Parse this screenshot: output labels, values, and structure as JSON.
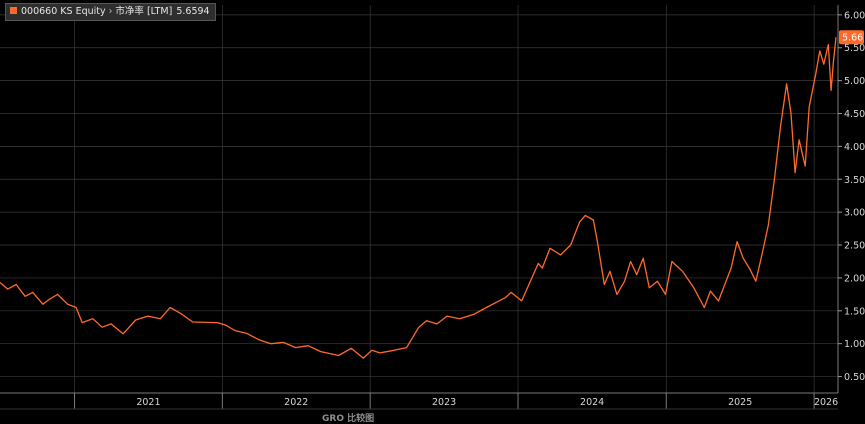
{
  "legend": {
    "ticker": "000660 KS Equity",
    "metric": "市净率 [LTM]",
    "value": "5.6594",
    "series_color": "#ff6a2a"
  },
  "last_price_badge": "5.66",
  "footer_label": "GRO 比较图",
  "colors": {
    "background": "#000000",
    "grid": "#3a3a3a",
    "axis_text": "#d8d8d8",
    "series": "#ff6a2a"
  },
  "chart_data": {
    "type": "line",
    "title": "",
    "xlabel": "",
    "ylabel": "",
    "x_tick_labels": [
      "2021",
      "2022",
      "2023",
      "2024",
      "2025",
      "2026"
    ],
    "x_range": [
      "2020-07-01",
      "2026-03-01"
    ],
    "y_tick_labels": [
      "0.50",
      "1.00",
      "1.50",
      "2.00",
      "2.50",
      "3.00",
      "3.50",
      "4.00",
      "4.50",
      "5.00",
      "5.50",
      "6.00"
    ],
    "ylim": [
      0.25,
      6.15
    ],
    "grid": true,
    "y_axis_side": "right",
    "series": [
      {
        "name": "000660 KS Equity",
        "color": "#ff6a2a",
        "points": [
          [
            "2020-07-01",
            1.93
          ],
          [
            "2020-07-20",
            1.83
          ],
          [
            "2020-08-10",
            1.9
          ],
          [
            "2020-09-01",
            1.72
          ],
          [
            "2020-09-20",
            1.78
          ],
          [
            "2020-10-15",
            1.6
          ],
          [
            "2020-11-01",
            1.68
          ],
          [
            "2020-11-20",
            1.75
          ],
          [
            "2020-12-15",
            1.6
          ],
          [
            "2021-01-05",
            1.55
          ],
          [
            "2021-01-20",
            1.32
          ],
          [
            "2021-02-15",
            1.38
          ],
          [
            "2021-03-10",
            1.25
          ],
          [
            "2021-04-01",
            1.3
          ],
          [
            "2021-05-01",
            1.15
          ],
          [
            "2021-06-01",
            1.36
          ],
          [
            "2021-07-01",
            1.42
          ],
          [
            "2021-08-01",
            1.38
          ],
          [
            "2021-08-25",
            1.55
          ],
          [
            "2021-09-20",
            1.46
          ],
          [
            "2021-10-20",
            1.33
          ],
          [
            "2021-12-20",
            1.32
          ],
          [
            "2022-01-10",
            1.28
          ],
          [
            "2022-02-01",
            1.2
          ],
          [
            "2022-03-01",
            1.16
          ],
          [
            "2022-04-01",
            1.06
          ],
          [
            "2022-05-01",
            1.0
          ],
          [
            "2022-06-01",
            1.02
          ],
          [
            "2022-07-01",
            0.94
          ],
          [
            "2022-08-01",
            0.97
          ],
          [
            "2022-09-01",
            0.88
          ],
          [
            "2022-10-15",
            0.82
          ],
          [
            "2022-11-15",
            0.93
          ],
          [
            "2022-12-01",
            0.85
          ],
          [
            "2022-12-15",
            0.78
          ],
          [
            "2023-01-05",
            0.9
          ],
          [
            "2023-01-25",
            0.86
          ],
          [
            "2023-03-01",
            0.9
          ],
          [
            "2023-04-01",
            0.94
          ],
          [
            "2023-05-01",
            1.25
          ],
          [
            "2023-05-20",
            1.35
          ],
          [
            "2023-06-15",
            1.3
          ],
          [
            "2023-07-10",
            1.42
          ],
          [
            "2023-08-10",
            1.38
          ],
          [
            "2023-09-15",
            1.45
          ],
          [
            "2023-10-15",
            1.55
          ],
          [
            "2023-11-15",
            1.65
          ],
          [
            "2023-12-01",
            1.7
          ],
          [
            "2023-12-15",
            1.78
          ],
          [
            "2024-01-10",
            1.65
          ],
          [
            "2024-02-20",
            2.22
          ],
          [
            "2024-03-01",
            2.15
          ],
          [
            "2024-03-20",
            2.45
          ],
          [
            "2024-04-15",
            2.35
          ],
          [
            "2024-05-10",
            2.5
          ],
          [
            "2024-06-01",
            2.85
          ],
          [
            "2024-06-15",
            2.95
          ],
          [
            "2024-07-05",
            2.88
          ],
          [
            "2024-07-15",
            2.55
          ],
          [
            "2024-08-01",
            1.9
          ],
          [
            "2024-08-15",
            2.1
          ],
          [
            "2024-09-01",
            1.75
          ],
          [
            "2024-09-20",
            1.95
          ],
          [
            "2024-10-05",
            2.25
          ],
          [
            "2024-10-20",
            2.05
          ],
          [
            "2024-11-05",
            2.3
          ],
          [
            "2024-11-20",
            1.85
          ],
          [
            "2024-12-10",
            1.95
          ],
          [
            "2024-12-30",
            1.75
          ],
          [
            "2025-01-15",
            2.25
          ],
          [
            "2025-02-10",
            2.1
          ],
          [
            "2025-03-10",
            1.85
          ],
          [
            "2025-04-05",
            1.55
          ],
          [
            "2025-04-20",
            1.8
          ],
          [
            "2025-05-10",
            1.65
          ],
          [
            "2025-06-10",
            2.15
          ],
          [
            "2025-06-25",
            2.55
          ],
          [
            "2025-07-10",
            2.3
          ],
          [
            "2025-07-25",
            2.15
          ],
          [
            "2025-08-10",
            1.95
          ],
          [
            "2025-08-25",
            2.35
          ],
          [
            "2025-09-10",
            2.8
          ],
          [
            "2025-09-25",
            3.5
          ],
          [
            "2025-10-10",
            4.3
          ],
          [
            "2025-10-25",
            4.95
          ],
          [
            "2025-11-05",
            4.5
          ],
          [
            "2025-11-15",
            3.6
          ],
          [
            "2025-11-25",
            4.1
          ],
          [
            "2025-12-10",
            3.7
          ],
          [
            "2025-12-20",
            4.6
          ],
          [
            "2026-01-05",
            5.1
          ],
          [
            "2026-01-15",
            5.45
          ],
          [
            "2026-01-25",
            5.25
          ],
          [
            "2026-02-05",
            5.55
          ],
          [
            "2026-02-12",
            4.85
          ],
          [
            "2026-02-18",
            5.3
          ],
          [
            "2026-02-24",
            5.66
          ]
        ]
      }
    ]
  }
}
